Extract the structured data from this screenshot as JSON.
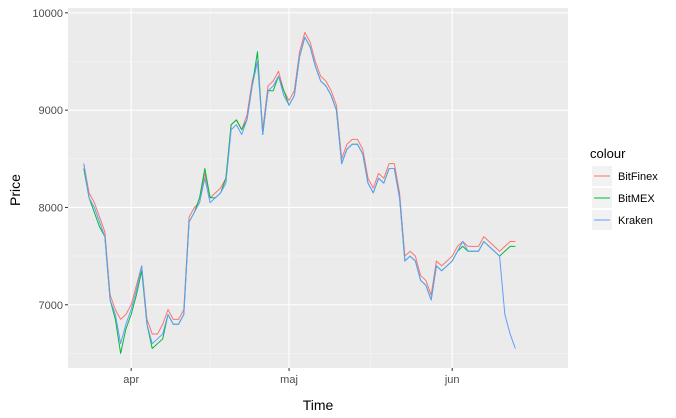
{
  "chart_data": {
    "type": "line",
    "title": "",
    "xlabel": "Time",
    "ylabel": "Price",
    "x_tick_labels": [
      "apr",
      "maj",
      "jun"
    ],
    "y_ticks": [
      7000,
      8000,
      9000,
      10000
    ],
    "y_tick_labels": [
      "7000",
      "8000",
      "9000",
      "10000"
    ],
    "xlim": [
      "2018-03-20",
      "2018-06-23"
    ],
    "ylim": [
      6350,
      10050
    ],
    "x_tick_dates": [
      "2018-04-01",
      "2018-05-01",
      "2018-06-01"
    ],
    "grid": true,
    "legend_position": "right",
    "legend_title": "colour",
    "series": [
      {
        "name": "BitFinex",
        "color": "#F8766D",
        "x": [
          "2018-03-23",
          "2018-03-24",
          "2018-03-25",
          "2018-03-26",
          "2018-03-27",
          "2018-03-28",
          "2018-03-29",
          "2018-03-30",
          "2018-03-31",
          "2018-04-01",
          "2018-04-02",
          "2018-04-03",
          "2018-04-04",
          "2018-04-05",
          "2018-04-06",
          "2018-04-07",
          "2018-04-08",
          "2018-04-09",
          "2018-04-10",
          "2018-04-11",
          "2018-04-12",
          "2018-04-13",
          "2018-04-14",
          "2018-04-15",
          "2018-04-16",
          "2018-04-17",
          "2018-04-18",
          "2018-04-19",
          "2018-04-20",
          "2018-04-21",
          "2018-04-22",
          "2018-04-23",
          "2018-04-24",
          "2018-04-25",
          "2018-04-26",
          "2018-04-27",
          "2018-04-28",
          "2018-04-29",
          "2018-04-30",
          "2018-05-01",
          "2018-05-02",
          "2018-05-03",
          "2018-05-04",
          "2018-05-05",
          "2018-05-06",
          "2018-05-07",
          "2018-05-08",
          "2018-05-09",
          "2018-05-10",
          "2018-05-11",
          "2018-05-12",
          "2018-05-13",
          "2018-05-14",
          "2018-05-15",
          "2018-05-16",
          "2018-05-17",
          "2018-05-18",
          "2018-05-19",
          "2018-05-20",
          "2018-05-21",
          "2018-05-22",
          "2018-05-23",
          "2018-05-24",
          "2018-05-25",
          "2018-05-26",
          "2018-05-27",
          "2018-05-28",
          "2018-05-29",
          "2018-05-30",
          "2018-05-31",
          "2018-06-01",
          "2018-06-02",
          "2018-06-03",
          "2018-06-04",
          "2018-06-05",
          "2018-06-06",
          "2018-06-07",
          "2018-06-08",
          "2018-06-09",
          "2018-06-10",
          "2018-06-11",
          "2018-06-12",
          "2018-06-13"
        ],
        "values": [
          8450,
          8150,
          8050,
          7900,
          7750,
          7100,
          6950,
          6850,
          6900,
          7000,
          7200,
          7400,
          6850,
          6700,
          6700,
          6800,
          6950,
          6850,
          6850,
          6950,
          7900,
          8000,
          8050,
          8350,
          8100,
          8150,
          8200,
          8300,
          8850,
          8900,
          8800,
          8950,
          9300,
          9500,
          8800,
          9250,
          9300,
          9400,
          9200,
          9100,
          9200,
          9600,
          9800,
          9700,
          9500,
          9350,
          9300,
          9200,
          9050,
          8500,
          8650,
          8700,
          8700,
          8600,
          8300,
          8200,
          8350,
          8300,
          8450,
          8450,
          8150,
          7500,
          7550,
          7500,
          7300,
          7250,
          7100,
          7450,
          7400,
          7450,
          7500,
          7600,
          7650,
          7600,
          7600,
          7600,
          7700,
          7650,
          7600,
          7550,
          7600,
          7650,
          7650
        ]
      },
      {
        "name": "BitMEX",
        "color": "#00BA38",
        "x": [
          "2018-03-23",
          "2018-03-24",
          "2018-03-25",
          "2018-03-26",
          "2018-03-27",
          "2018-03-28",
          "2018-03-29",
          "2018-03-30",
          "2018-03-31",
          "2018-04-01",
          "2018-04-02",
          "2018-04-03",
          "2018-04-04",
          "2018-04-05",
          "2018-04-06",
          "2018-04-07",
          "2018-04-08",
          "2018-04-09",
          "2018-04-10",
          "2018-04-11",
          "2018-04-12",
          "2018-04-13",
          "2018-04-14",
          "2018-04-15",
          "2018-04-16",
          "2018-04-17",
          "2018-04-18",
          "2018-04-19",
          "2018-04-20",
          "2018-04-21",
          "2018-04-22",
          "2018-04-23",
          "2018-04-24",
          "2018-04-25",
          "2018-04-26",
          "2018-04-27",
          "2018-04-28",
          "2018-04-29",
          "2018-04-30",
          "2018-05-01",
          "2018-05-02",
          "2018-05-03",
          "2018-05-04",
          "2018-05-05",
          "2018-05-06",
          "2018-05-07",
          "2018-05-08",
          "2018-05-09",
          "2018-05-10",
          "2018-05-11",
          "2018-05-12",
          "2018-05-13",
          "2018-05-14",
          "2018-05-15",
          "2018-05-16",
          "2018-05-17",
          "2018-05-18",
          "2018-05-19",
          "2018-05-20",
          "2018-05-21",
          "2018-05-22",
          "2018-05-23",
          "2018-05-24",
          "2018-05-25",
          "2018-05-26",
          "2018-05-27",
          "2018-05-28",
          "2018-05-29",
          "2018-05-30",
          "2018-05-31",
          "2018-06-01",
          "2018-06-02",
          "2018-06-03",
          "2018-06-04",
          "2018-06-05",
          "2018-06-06",
          "2018-06-07",
          "2018-06-08",
          "2018-06-09",
          "2018-06-10",
          "2018-06-11",
          "2018-06-12",
          "2018-06-13"
        ],
        "values": [
          8400,
          8100,
          7950,
          7800,
          7700,
          7050,
          6850,
          6500,
          6750,
          6900,
          7100,
          7350,
          6800,
          6550,
          6600,
          6650,
          6900,
          6800,
          6800,
          6900,
          7850,
          7950,
          8100,
          8400,
          8100,
          8100,
          8150,
          8300,
          8850,
          8900,
          8800,
          8900,
          9250,
          9600,
          8750,
          9200,
          9200,
          9350,
          9200,
          9050,
          9150,
          9550,
          9750,
          9650,
          9450,
          9300,
          9250,
          9150,
          9000,
          8450,
          8600,
          8650,
          8650,
          8550,
          8250,
          8150,
          8300,
          8250,
          8400,
          8400,
          8100,
          7450,
          7500,
          7450,
          7250,
          7200,
          7050,
          7400,
          7350,
          7400,
          7450,
          7550,
          7600,
          7550,
          7550,
          7550,
          7650,
          7600,
          7550,
          7500,
          7550,
          7600,
          7600
        ]
      },
      {
        "name": "Kraken",
        "color": "#619CFF",
        "x": [
          "2018-03-23",
          "2018-03-24",
          "2018-03-25",
          "2018-03-26",
          "2018-03-27",
          "2018-03-28",
          "2018-03-29",
          "2018-03-30",
          "2018-03-31",
          "2018-04-01",
          "2018-04-02",
          "2018-04-03",
          "2018-04-04",
          "2018-04-05",
          "2018-04-06",
          "2018-04-07",
          "2018-04-08",
          "2018-04-09",
          "2018-04-10",
          "2018-04-11",
          "2018-04-12",
          "2018-04-13",
          "2018-04-14",
          "2018-04-15",
          "2018-04-16",
          "2018-04-17",
          "2018-04-18",
          "2018-04-19",
          "2018-04-20",
          "2018-04-21",
          "2018-04-22",
          "2018-04-23",
          "2018-04-24",
          "2018-04-25",
          "2018-04-26",
          "2018-04-27",
          "2018-04-28",
          "2018-04-29",
          "2018-04-30",
          "2018-05-01",
          "2018-05-02",
          "2018-05-03",
          "2018-05-04",
          "2018-05-05",
          "2018-05-06",
          "2018-05-07",
          "2018-05-08",
          "2018-05-09",
          "2018-05-10",
          "2018-05-11",
          "2018-05-12",
          "2018-05-13",
          "2018-05-14",
          "2018-05-15",
          "2018-05-16",
          "2018-05-17",
          "2018-05-18",
          "2018-05-19",
          "2018-05-20",
          "2018-05-21",
          "2018-05-22",
          "2018-05-23",
          "2018-05-24",
          "2018-05-25",
          "2018-05-26",
          "2018-05-27",
          "2018-05-28",
          "2018-05-29",
          "2018-05-30",
          "2018-05-31",
          "2018-06-01",
          "2018-06-02",
          "2018-06-03",
          "2018-06-04",
          "2018-06-05",
          "2018-06-06",
          "2018-06-07",
          "2018-06-08",
          "2018-06-09",
          "2018-06-10",
          "2018-06-11",
          "2018-06-12",
          "2018-06-13"
        ],
        "values": [
          8450,
          8100,
          8000,
          7850,
          7700,
          7050,
          6900,
          6600,
          6800,
          6950,
          7150,
          7400,
          6800,
          6600,
          6650,
          6700,
          6900,
          6800,
          6800,
          6900,
          7850,
          7950,
          8050,
          8300,
          8050,
          8100,
          8150,
          8250,
          8800,
          8850,
          8750,
          8900,
          9250,
          9500,
          8750,
          9200,
          9250,
          9350,
          9150,
          9050,
          9150,
          9550,
          9750,
          9650,
          9450,
          9300,
          9250,
          9150,
          9000,
          8450,
          8600,
          8650,
          8650,
          8550,
          8250,
          8150,
          8300,
          8250,
          8400,
          8400,
          8100,
          7450,
          7500,
          7450,
          7250,
          7200,
          7050,
          7400,
          7350,
          7400,
          7450,
          7550,
          7650,
          7550,
          7550,
          7550,
          7650,
          7600,
          7550,
          7500,
          6900,
          6700,
          6550
        ]
      }
    ]
  }
}
